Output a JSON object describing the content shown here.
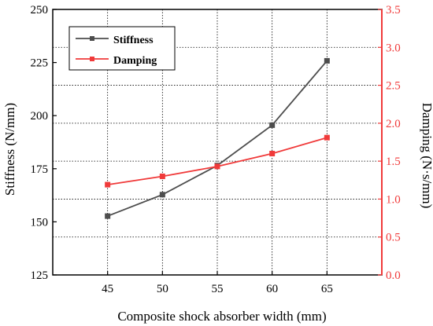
{
  "chart_data": {
    "type": "line",
    "title": "",
    "xlabel": "Composite shock absorber width (mm)",
    "ylabel_left": "Stiffness (N/mm)",
    "ylabel_right": "Damping (N·s/mm)",
    "x": [
      45,
      50,
      55,
      60,
      65
    ],
    "x_ticks": [
      "45",
      "50",
      "55",
      "60",
      "65"
    ],
    "xlim": [
      40,
      70
    ],
    "ylim_left": [
      125,
      250
    ],
    "yticks_left": [
      "125",
      "150",
      "175",
      "200",
      "225",
      "250"
    ],
    "ylim_right": [
      0.0,
      3.5
    ],
    "yticks_right": [
      "0.0",
      "0.5",
      "1.0",
      "1.5",
      "2.0",
      "2.5",
      "3.0",
      "3.5"
    ],
    "grid": true,
    "legend_position": "top-left",
    "series": [
      {
        "name": "Stiffness",
        "axis": "left",
        "color": "#4d4d4d",
        "values": [
          152.7,
          162.8,
          176.5,
          195.5,
          225.8
        ]
      },
      {
        "name": "Damping",
        "axis": "right",
        "color": "#f03a3a",
        "values": [
          1.19,
          1.3,
          1.43,
          1.6,
          1.81
        ]
      }
    ]
  }
}
